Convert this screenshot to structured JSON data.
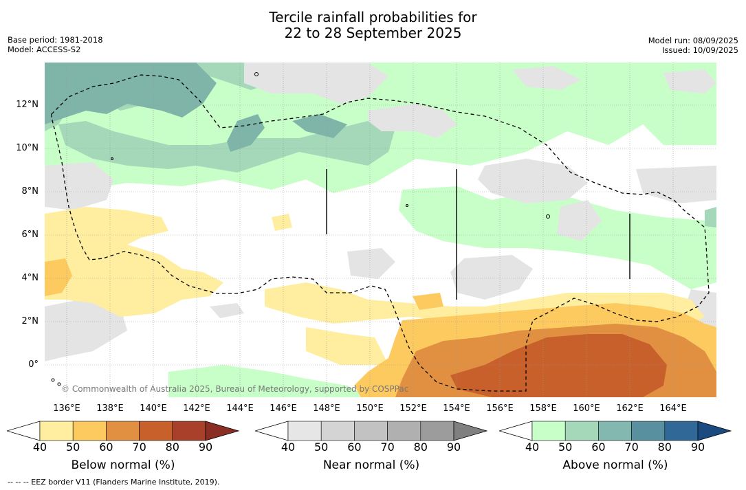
{
  "title": {
    "line1": "Tercile rainfall probabilities for",
    "line2": "22 to 28 September 2025"
  },
  "meta": {
    "base_period": "Base period: 1981-2018",
    "model": "Model: ACCESS-S2",
    "model_run": "Model run: 08/09/2025",
    "issued": "Issued: 10/09/2025"
  },
  "map": {
    "lat_labels": [
      "12°N",
      "10°N",
      "8°N",
      "6°N",
      "4°N",
      "2°N",
      "0°"
    ],
    "lon_labels": [
      "136°E",
      "138°E",
      "140°E",
      "142°E",
      "144°E",
      "146°E",
      "148°E",
      "150°E",
      "152°E",
      "154°E",
      "156°E",
      "158°E",
      "160°E",
      "162°E",
      "164°E"
    ],
    "credit": "© Commonwealth of Australia 2025, Bureau of Meteorology, supported by COSPPac",
    "colors": {
      "below_50": "#ffeea0",
      "below_60": "#fdca60",
      "below_70": "#e09040",
      "below_80": "#c8602c",
      "near_50": "#e4e4e4",
      "above_50": "#c8ffc8",
      "above_60": "#a4d8b8",
      "above_70": "#7eb5a8"
    }
  },
  "legends": {
    "below": {
      "title": "Below normal (%)",
      "ticks": [
        "40",
        "50",
        "60",
        "70",
        "80",
        "90"
      ],
      "colors": [
        "#ffee9f",
        "#fdca60",
        "#e09040",
        "#c8602c",
        "#a8402a",
        "#8a2e24"
      ]
    },
    "near": {
      "title": "Near normal (%)",
      "ticks": [
        "40",
        "50",
        "60",
        "70",
        "80",
        "90"
      ],
      "colors": [
        "#e6e6e6",
        "#d4d4d4",
        "#c2c2c2",
        "#b0b0b0",
        "#9c9c9c",
        "#808080"
      ]
    },
    "above": {
      "title": "Above normal (%)",
      "ticks": [
        "40",
        "50",
        "60",
        "70",
        "80",
        "90"
      ],
      "colors": [
        "#c8ffc8",
        "#a4d8b8",
        "#82b8b0",
        "#5890a0",
        "#306898",
        "#1a4a80"
      ]
    }
  },
  "footnote": "--  --  -- EEZ border V11 (Flanders Marine Institute, 2019)."
}
